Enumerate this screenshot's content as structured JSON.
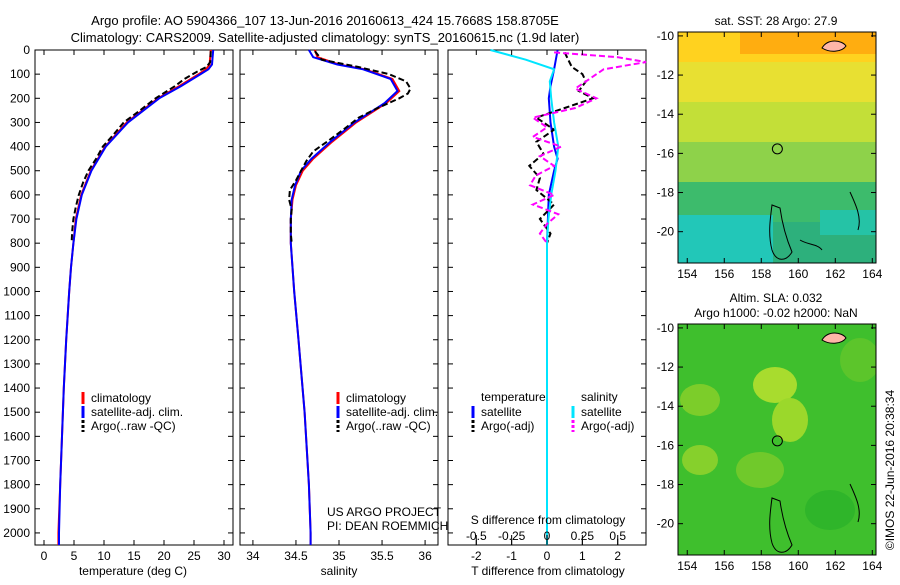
{
  "header": {
    "line1": "Argo profile: AO 5904366_107 13-Jun-2016 20160613_424 15.7668S 158.8705E",
    "line2": "Climatology: CARS2009. Satellite-adjusted climatology: synTS_20160615.nc (1.9d later)"
  },
  "colors": {
    "climatology": "#ff0000",
    "satellite": "#0000ff",
    "argo": "#000000",
    "sal_satellite": "#00e5ff",
    "sal_argo": "#ff00ff"
  },
  "depth_axis": {
    "ylim": [
      0,
      2050
    ],
    "ticks": [
      "0",
      "100",
      "200",
      "300",
      "400",
      "500",
      "600",
      "700",
      "800",
      "900",
      "1000",
      "1100",
      "1200",
      "1300",
      "1400",
      "1500",
      "1600",
      "1700",
      "1800",
      "1900",
      "2000"
    ]
  },
  "legend_profiles": [
    "climatology",
    "satellite-adj. clim.",
    "Argo(..raw -QC)"
  ],
  "legend_diff": {
    "temp_header": "temperature",
    "sal_header": "salinity",
    "temp_items": [
      "satellite",
      "Argo(-adj)"
    ],
    "sal_items": [
      "satellite",
      "Argo(-adj)"
    ]
  },
  "project": {
    "line1": "US ARGO PROJECT",
    "line2": "PI: DEAN ROEMMICH"
  },
  "chart_data": [
    {
      "type": "line",
      "name": "temperature-profile",
      "xlabel": "temperature (deg C)",
      "xlim": [
        -1.5,
        31.5
      ],
      "xticks": [
        0,
        5,
        10,
        15,
        20,
        25,
        30
      ],
      "xtick_labels": [
        "0",
        "5",
        "10",
        "15",
        "20",
        "25",
        "30"
      ],
      "series": [
        {
          "name": "climatology",
          "depth": [
            0,
            60,
            80,
            100,
            150,
            200,
            300,
            400,
            500,
            600,
            700,
            800,
            900,
            1000,
            1200,
            1400,
            1600,
            1800,
            2000,
            2050
          ],
          "values": [
            27.8,
            27.6,
            27.0,
            25.8,
            22.5,
            19.0,
            13.8,
            10.2,
            7.8,
            6.2,
            5.3,
            4.9,
            4.5,
            4.2,
            3.7,
            3.3,
            3.0,
            2.7,
            2.4,
            2.4
          ]
        },
        {
          "name": "satellite-adj. clim.",
          "depth": [
            0,
            60,
            80,
            100,
            150,
            200,
            300,
            400,
            500,
            600,
            700,
            800,
            900,
            1000,
            1200,
            1400,
            1600,
            1800,
            2000,
            2050
          ],
          "values": [
            28.2,
            28.0,
            27.4,
            26.1,
            22.8,
            19.2,
            14.0,
            10.3,
            7.9,
            6.3,
            5.4,
            4.9,
            4.5,
            4.2,
            3.7,
            3.3,
            3.0,
            2.7,
            2.5,
            2.5
          ]
        },
        {
          "name": "Argo(..raw -QC)",
          "depth": [
            5,
            50,
            70,
            90,
            120,
            150,
            200,
            250,
            300,
            350,
            400,
            450,
            500,
            550,
            600,
            650,
            700,
            750,
            800
          ],
          "values": [
            27.8,
            27.7,
            27.1,
            25.5,
            23.4,
            21.8,
            18.6,
            16.0,
            13.3,
            11.6,
            9.8,
            8.7,
            7.4,
            6.5,
            5.8,
            5.3,
            4.9,
            4.7,
            4.6
          ]
        }
      ]
    },
    {
      "type": "line",
      "name": "salinity-profile",
      "xlabel": "salinity",
      "xlim": [
        33.85,
        36.15
      ],
      "xticks": [
        34,
        34.5,
        35,
        35.5,
        36
      ],
      "xtick_labels": [
        "34",
        "34.5",
        "35",
        "35.5",
        "36"
      ],
      "series": [
        {
          "name": "climatology",
          "depth": [
            0,
            30,
            60,
            80,
            120,
            170,
            220,
            300,
            380,
            450,
            500,
            560,
            620,
            700,
            800,
            900,
            1000,
            1200,
            1500,
            1800,
            2000,
            2050
          ],
          "values": [
            34.72,
            34.75,
            35.0,
            35.3,
            35.62,
            35.7,
            35.55,
            35.2,
            34.92,
            34.7,
            34.58,
            34.5,
            34.46,
            34.44,
            34.44,
            34.46,
            34.48,
            34.53,
            34.6,
            34.65,
            34.67,
            34.67
          ]
        },
        {
          "name": "satellite-adj. clim.",
          "depth": [
            0,
            30,
            60,
            80,
            120,
            170,
            220,
            300,
            380,
            450,
            500,
            560,
            620,
            700,
            800,
            900,
            1000,
            1200,
            1500,
            1800,
            2000,
            2050
          ],
          "values": [
            34.65,
            34.7,
            34.98,
            35.28,
            35.6,
            35.68,
            35.53,
            35.18,
            34.9,
            34.68,
            34.56,
            34.49,
            34.45,
            34.44,
            34.44,
            34.46,
            34.48,
            34.53,
            34.6,
            34.65,
            34.67,
            34.67
          ]
        },
        {
          "name": "Argo(..raw -QC)",
          "depth": [
            5,
            40,
            70,
            100,
            130,
            160,
            180,
            200,
            240,
            280,
            330,
            380,
            420,
            460,
            500,
            540,
            580,
            620,
            660,
            700,
            760,
            800
          ],
          "values": [
            34.72,
            34.8,
            35.22,
            35.58,
            35.78,
            35.83,
            35.8,
            35.7,
            35.45,
            35.23,
            35.05,
            34.86,
            34.7,
            34.62,
            34.56,
            34.5,
            34.43,
            34.42,
            34.45,
            34.44,
            34.44,
            34.45
          ]
        }
      ]
    },
    {
      "type": "line",
      "name": "difference-from-climatology",
      "xlabel": "T difference from climatology",
      "xlabel_top": "S difference from climatology",
      "xlim": [
        -2.8,
        2.8
      ],
      "xticks": [
        -2,
        -1,
        0,
        1,
        2
      ],
      "xtick_labels": [
        "-2",
        "-1",
        "0",
        "1",
        "2"
      ],
      "sticks": [
        -0.5,
        -0.25,
        0,
        0.25,
        0.5
      ],
      "stick_labels": [
        "-0.5",
        "-0.25",
        "0",
        "0.25",
        "0.5"
      ],
      "series": [
        {
          "name": "temperature satellite",
          "depth": [
            0,
            80,
            150,
            200,
            300,
            400,
            450,
            500,
            600,
            800,
            1000,
            1500,
            2000,
            2050
          ],
          "values": [
            0.3,
            0.2,
            0.1,
            0.05,
            0.1,
            0.2,
            0.3,
            0.2,
            0.05,
            0.0,
            0.0,
            0.0,
            0.0,
            0.0
          ]
        },
        {
          "name": "temperature Argo(-adj)",
          "depth": [
            10,
            40,
            70,
            100,
            130,
            170,
            200,
            240,
            280,
            330,
            380,
            430,
            480,
            530,
            580,
            640,
            700,
            760,
            800
          ],
          "values": [
            0.5,
            0.6,
            0.7,
            1.0,
            1.1,
            0.9,
            1.3,
            0.5,
            -0.3,
            0.2,
            -0.3,
            -0.1,
            -0.5,
            -0.2,
            -0.3,
            0.2,
            -0.2,
            0.1,
            0.0
          ]
        },
        {
          "name": "salinity satellite",
          "depth": [
            0,
            40,
            80,
            130,
            200,
            300,
            400,
            500,
            600,
            700,
            800,
            1000,
            1500,
            2000,
            2050
          ],
          "values": [
            -0.4,
            -0.15,
            0.05,
            0.02,
            0.03,
            0.05,
            0.08,
            0.06,
            0.03,
            0.01,
            0.0,
            0.0,
            0.0,
            0.0,
            0.0
          ]
        },
        {
          "name": "salinity Argo(-adj)",
          "depth": [
            10,
            30,
            50,
            80,
            120,
            160,
            200,
            240,
            280,
            320,
            360,
            400,
            440,
            480,
            520,
            560,
            600,
            640,
            680,
            720,
            760,
            800
          ],
          "values": [
            0.05,
            0.5,
            0.7,
            0.4,
            0.3,
            0.2,
            0.35,
            0.2,
            -0.1,
            0.0,
            -0.1,
            0.1,
            -0.05,
            0.05,
            -0.08,
            -0.12,
            0.05,
            -0.1,
            0.08,
            0.0,
            -0.05,
            0.0
          ]
        }
      ]
    },
    {
      "type": "heatmap",
      "name": "sst-map",
      "title": "sat. SST: 28 Argo: 27.9",
      "xlim": [
        153.5,
        164.2
      ],
      "ylim": [
        -21.6,
        -9.8
      ],
      "xticks": [
        154,
        156,
        158,
        160,
        162,
        164
      ],
      "yticks": [
        -10,
        -12,
        -14,
        -16,
        -18,
        -20
      ],
      "xtick_labels": [
        "154",
        "156",
        "158",
        "160",
        "162",
        "164"
      ],
      "ytick_labels": [
        "-10",
        "-12",
        "-14",
        "-16",
        "-18",
        "-20"
      ],
      "marker": {
        "lon": 158.87,
        "lat": -15.77
      }
    },
    {
      "type": "heatmap",
      "name": "sla-map",
      "title_line1": "Altim. SLA: 0.032",
      "title_line2": "Argo h1000: -0.02 h2000: NaN",
      "xlim": [
        153.5,
        164.2
      ],
      "ylim": [
        -21.6,
        -9.8
      ],
      "xticks": [
        154,
        156,
        158,
        160,
        162,
        164
      ],
      "yticks": [
        -10,
        -12,
        -14,
        -16,
        -18,
        -20
      ],
      "xtick_labels": [
        "154",
        "156",
        "158",
        "160",
        "162",
        "164"
      ],
      "ytick_labels": [
        "-10",
        "-12",
        "-14",
        "-16",
        "-18",
        "-20"
      ],
      "marker": {
        "lon": 158.87,
        "lat": -15.77
      }
    }
  ],
  "credit": "©IMOS 22-Jun-2016 20:38:34"
}
